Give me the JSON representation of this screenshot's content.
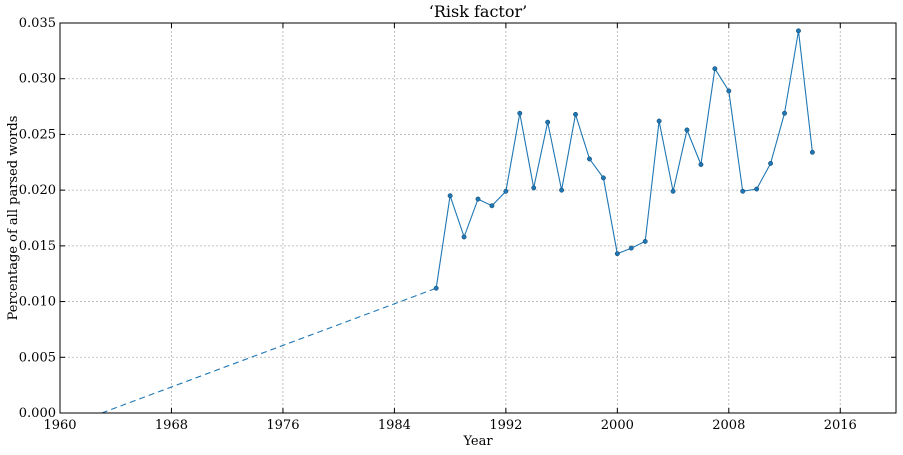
{
  "chart_data": {
    "type": "line",
    "title": "‘Risk factor’",
    "xlabel": "Year",
    "ylabel": "Percentage of all parsed words",
    "xlim": [
      1960,
      2020
    ],
    "ylim": [
      0,
      0.035
    ],
    "xticks": [
      1960,
      1968,
      1976,
      1984,
      1992,
      2000,
      2008,
      2016
    ],
    "xtick_labels": [
      "1960",
      "1968",
      "1976",
      "1984",
      "1992",
      "2000",
      "2008",
      "2016"
    ],
    "yticks": [
      0,
      0.005,
      0.01,
      0.015,
      0.02,
      0.025,
      0.03,
      0.035
    ],
    "ytick_labels": [
      "0.000",
      "0.005",
      "0.010",
      "0.015",
      "0.020",
      "0.025",
      "0.030",
      "0.035"
    ],
    "grid": true,
    "color": "#1f77b4",
    "series": [
      {
        "style": "dashed",
        "x": [
          1963,
          1987
        ],
        "y": [
          0.0,
          0.0112
        ]
      },
      {
        "style": "solid-markers",
        "x": [
          1987,
          1988,
          1989,
          1990,
          1991,
          1992,
          1993,
          1994,
          1995,
          1996,
          1997,
          1998,
          1999,
          2000,
          2001,
          2002,
          2003,
          2004,
          2005,
          2006,
          2007,
          2008,
          2009,
          2010,
          2011,
          2012,
          2013,
          2014
        ],
        "y": [
          0.0112,
          0.0195,
          0.0158,
          0.0192,
          0.0186,
          0.0199,
          0.0269,
          0.0202,
          0.0261,
          0.02,
          0.0268,
          0.0228,
          0.0211,
          0.0143,
          0.0148,
          0.0154,
          0.0262,
          0.0199,
          0.0254,
          0.0223,
          0.0309,
          0.0289,
          0.0199,
          0.0201,
          0.0224,
          0.0269,
          0.0343,
          0.0234
        ]
      }
    ]
  }
}
